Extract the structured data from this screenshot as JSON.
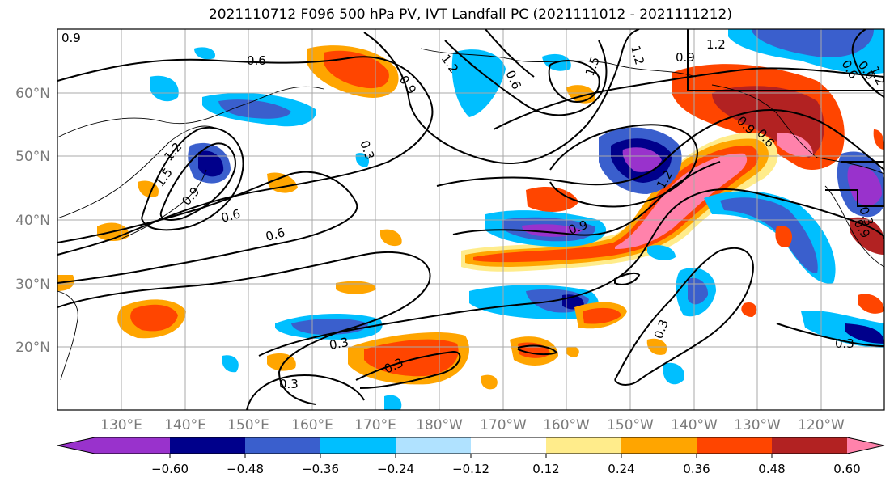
{
  "title": "2021110712 F096 500 hPa PV, IVT Landfall PC (2021111012 - 2021111212)",
  "lat_labels": [
    "60°N",
    "50°N",
    "40°N",
    "30°N",
    "20°N"
  ],
  "lon_labels": [
    "130°E",
    "140°E",
    "150°E",
    "160°E",
    "170°E",
    "180°W",
    "170°W",
    "160°W",
    "150°W",
    "140°W",
    "130°W",
    "120°W"
  ],
  "colorbar": {
    "ticks": [
      "−0.60",
      "−0.48",
      "−0.36",
      "−0.24",
      "−0.12",
      "0.12",
      "0.24",
      "0.36",
      "0.48",
      "0.60"
    ],
    "colors": [
      "#9932cc",
      "#00008b",
      "#3a5fcd",
      "#00bfff",
      "#b0e2ff",
      "#ffffff",
      "#ffec8b",
      "#ffa500",
      "#ff4500",
      "#b22222",
      "#ff82ab"
    ]
  },
  "contour_labels": [
    "0.9",
    "0.6",
    "1.2",
    "0.9",
    "0.6",
    "1.2",
    "1.5",
    "0.9",
    "1.2",
    "0.9",
    "0.6",
    "0.3",
    "1.2",
    "1.5",
    "0.9",
    "0.6",
    "0.6",
    "0.9",
    "1.2",
    "0.9",
    "0.3",
    "0.3",
    "0.3",
    "0.3",
    "0.3",
    "1.2",
    "0.6",
    "0.6",
    "0.3"
  ],
  "colors": {
    "grid": "#a9a9a9",
    "tick_label": "#7a7a7a",
    "contour": "#000000"
  }
}
